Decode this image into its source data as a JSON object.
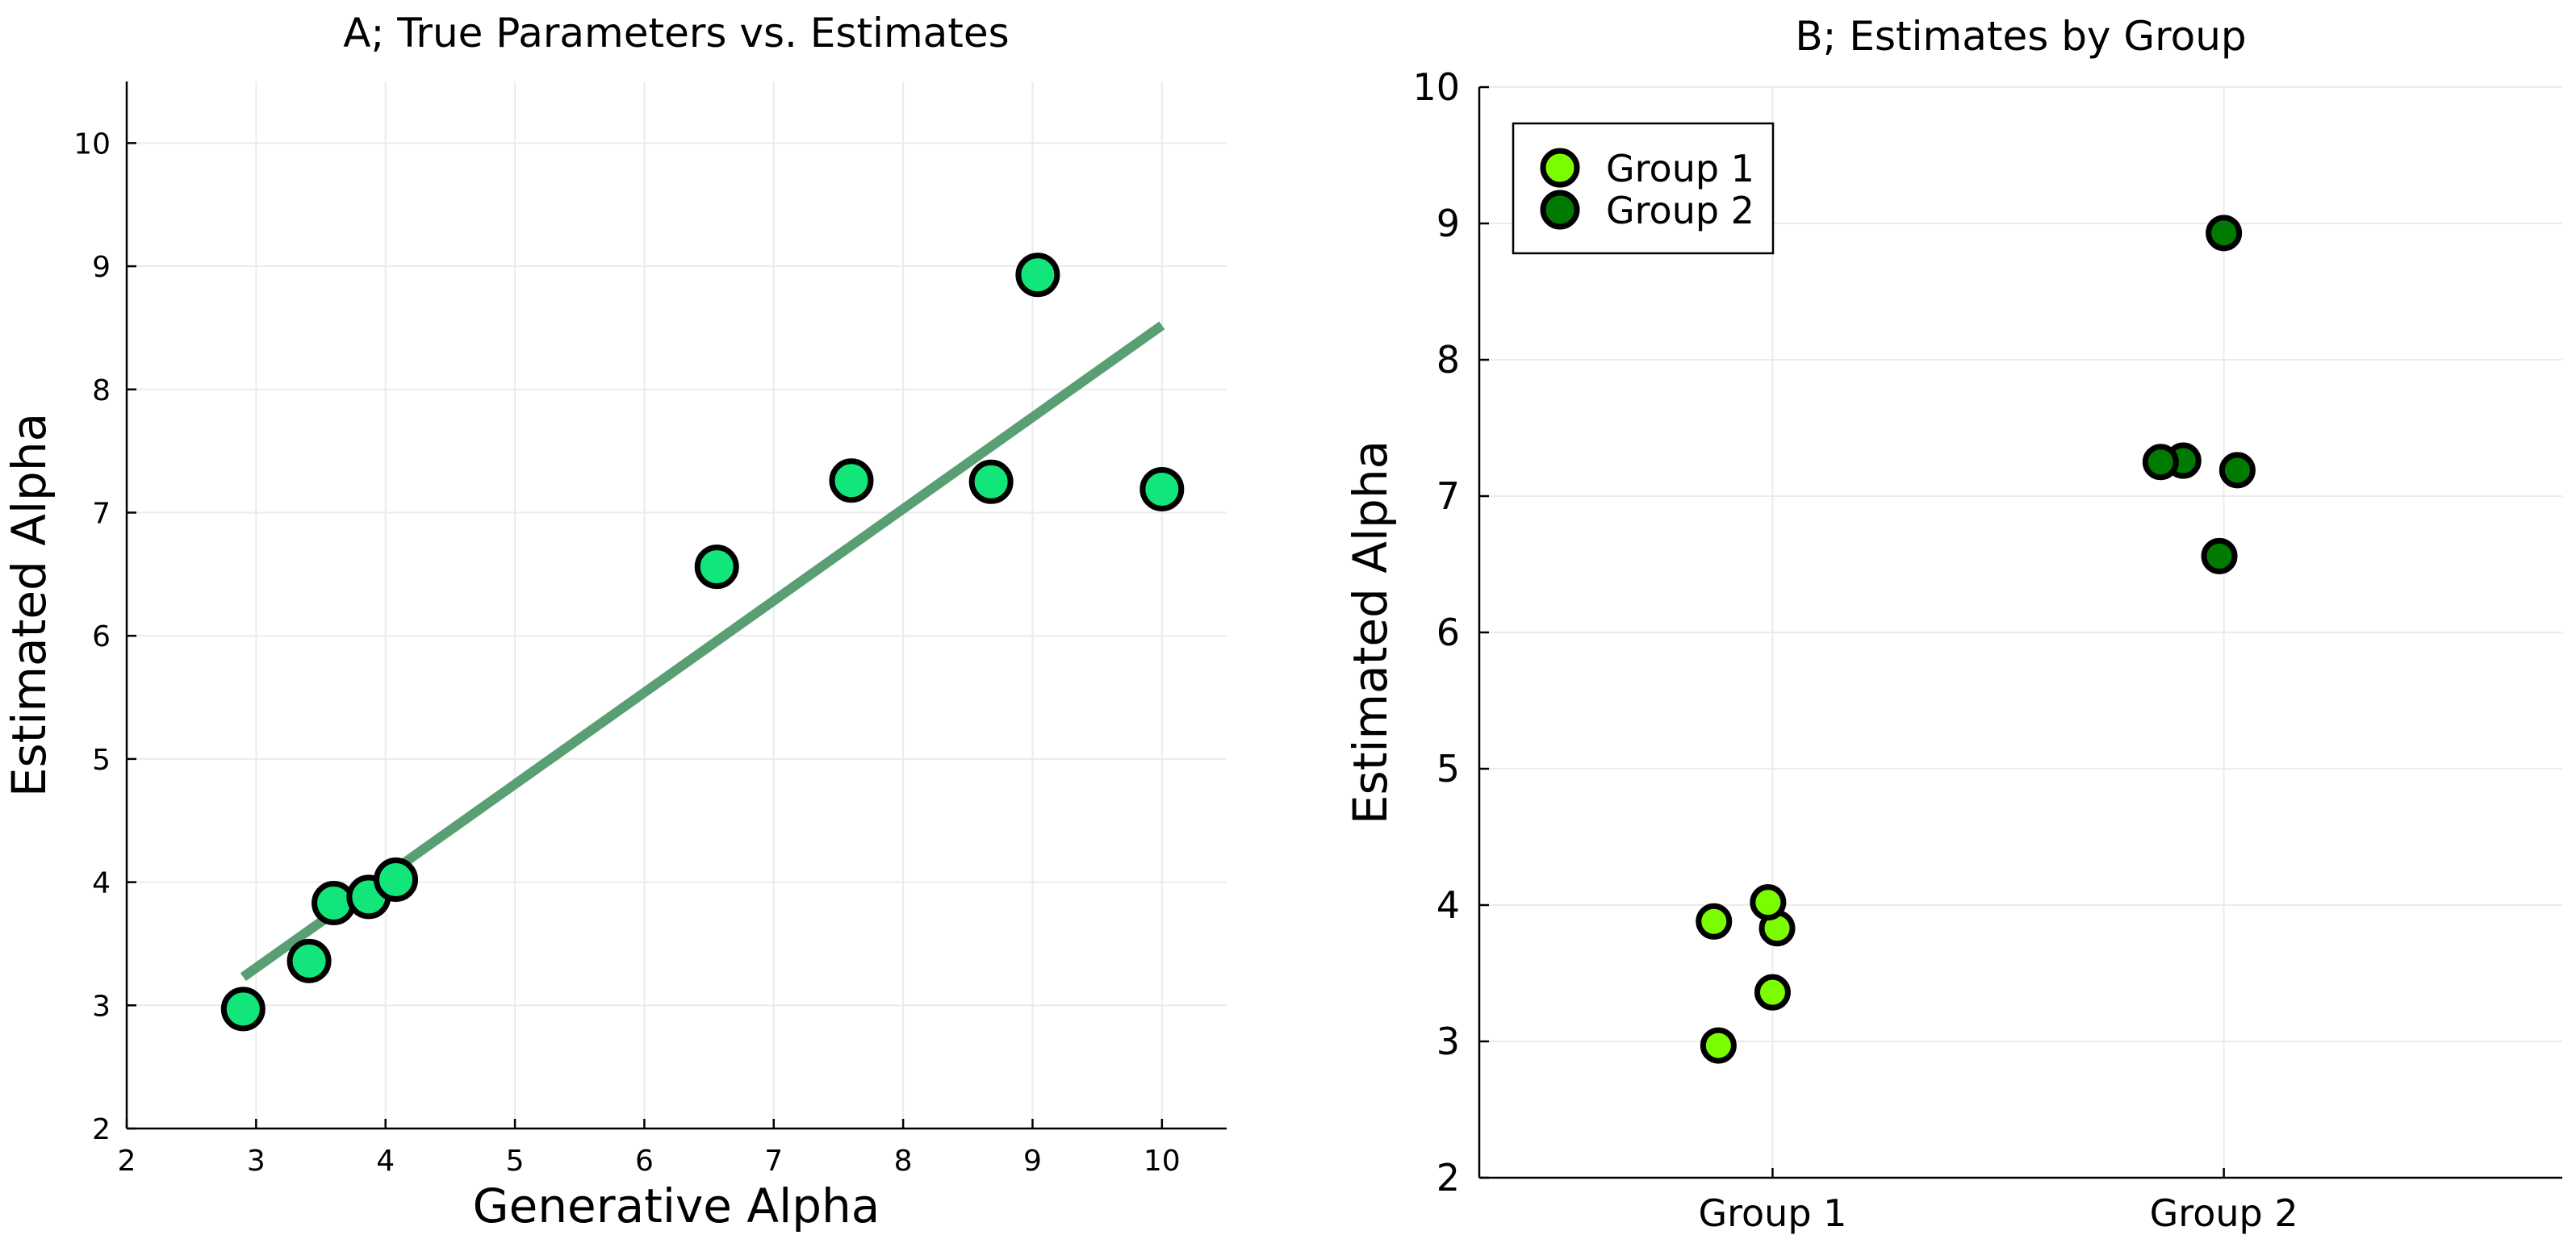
{
  "chart_data": [
    {
      "type": "scatter",
      "title": "A; True Parameters vs. Estimates",
      "xlabel": "Generative Alpha",
      "ylabel": "Estimated Alpha",
      "xlim": [
        2,
        10.5
      ],
      "ylim": [
        2,
        10.5
      ],
      "xticks": [
        2,
        3,
        4,
        5,
        6,
        7,
        8,
        9,
        10
      ],
      "yticks": [
        2,
        3,
        4,
        5,
        6,
        7,
        8,
        9,
        10
      ],
      "grid": true,
      "legend": "none",
      "point_color": "#12e67a",
      "line_color": "#5a9e74",
      "points": [
        {
          "x": 2.9,
          "y": 2.97
        },
        {
          "x": 3.41,
          "y": 3.36
        },
        {
          "x": 3.6,
          "y": 3.83
        },
        {
          "x": 3.87,
          "y": 3.88
        },
        {
          "x": 4.08,
          "y": 4.02
        },
        {
          "x": 6.56,
          "y": 6.56
        },
        {
          "x": 7.6,
          "y": 7.26
        },
        {
          "x": 8.68,
          "y": 7.25
        },
        {
          "x": 9.04,
          "y": 8.93
        },
        {
          "x": 10.0,
          "y": 7.19
        }
      ],
      "fit_line": {
        "x": [
          2.9,
          10.0
        ],
        "y": [
          3.23,
          8.52
        ]
      }
    },
    {
      "type": "scatter",
      "title": "B; Estimates by Group",
      "xlabel": "",
      "ylabel": "Estimated Alpha",
      "categories": [
        "Group 1",
        "Group 2"
      ],
      "xlim": [
        0.35,
        2.75
      ],
      "ylim": [
        2,
        10
      ],
      "yticks": [
        2,
        3,
        4,
        5,
        6,
        7,
        8,
        9,
        10
      ],
      "grid": true,
      "legend": "top-left",
      "series": [
        {
          "name": "Group 1",
          "color": "#7cfc00",
          "points": [
            {
              "x": 0.88,
              "y": 2.97
            },
            {
              "x": 1.0,
              "y": 3.36
            },
            {
              "x": 1.01,
              "y": 3.83
            },
            {
              "x": 0.87,
              "y": 3.88
            },
            {
              "x": 0.99,
              "y": 4.02
            }
          ]
        },
        {
          "name": "Group 2",
          "color": "#007a00",
          "points": [
            {
              "x": 1.99,
              "y": 6.56
            },
            {
              "x": 1.91,
              "y": 7.26
            },
            {
              "x": 1.86,
              "y": 7.25
            },
            {
              "x": 2.0,
              "y": 8.93
            },
            {
              "x": 2.03,
              "y": 7.19
            }
          ]
        }
      ]
    }
  ]
}
